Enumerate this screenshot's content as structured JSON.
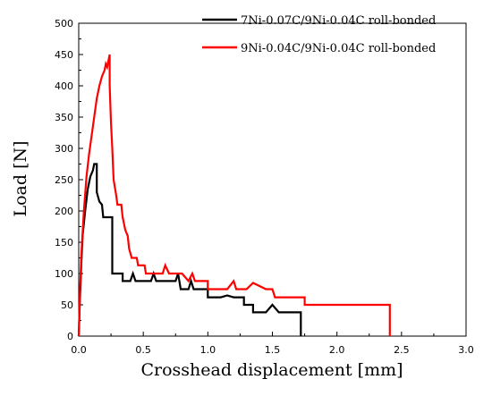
{
  "chart_data": {
    "type": "line",
    "xlabel": "Crosshead displacement [mm]",
    "ylabel": "Load [N]",
    "xlim": [
      0.0,
      3.0
    ],
    "ylim": [
      0,
      500
    ],
    "x_ticks": [
      0.0,
      0.5,
      1.0,
      1.5,
      2.0,
      2.5,
      3.0
    ],
    "x_tick_labels": [
      "0.0",
      "0.5",
      "1.0",
      "1.5",
      "2.0",
      "2.5",
      "3.0"
    ],
    "y_ticks": [
      0,
      50,
      100,
      150,
      200,
      250,
      300,
      350,
      400,
      450,
      500
    ],
    "y_tick_labels": [
      "0",
      "50",
      "100",
      "150",
      "200",
      "250",
      "300",
      "350",
      "400",
      "450",
      "500"
    ],
    "grid": false,
    "legend_position": "top-right",
    "series": [
      {
        "name": "7Ni-0.07C/9Ni-0.04C roll-bonded",
        "color": "#000000",
        "points": [
          [
            0.0,
            0
          ],
          [
            0.01,
            60
          ],
          [
            0.02,
            115
          ],
          [
            0.03,
            160
          ],
          [
            0.05,
            200
          ],
          [
            0.07,
            235
          ],
          [
            0.09,
            255
          ],
          [
            0.11,
            265
          ],
          [
            0.12,
            275
          ],
          [
            0.14,
            275
          ],
          [
            0.14,
            230
          ],
          [
            0.16,
            215
          ],
          [
            0.18,
            210
          ],
          [
            0.19,
            190
          ],
          [
            0.26,
            190
          ],
          [
            0.26,
            100
          ],
          [
            0.34,
            100
          ],
          [
            0.34,
            88
          ],
          [
            0.4,
            88
          ],
          [
            0.42,
            100
          ],
          [
            0.44,
            88
          ],
          [
            0.5,
            88
          ],
          [
            0.56,
            88
          ],
          [
            0.58,
            100
          ],
          [
            0.6,
            88
          ],
          [
            0.75,
            88
          ],
          [
            0.77,
            100
          ],
          [
            0.79,
            75
          ],
          [
            0.85,
            75
          ],
          [
            0.87,
            88
          ],
          [
            0.89,
            75
          ],
          [
            0.95,
            75
          ],
          [
            1.0,
            75
          ],
          [
            1.0,
            62
          ],
          [
            1.1,
            62
          ],
          [
            1.15,
            65
          ],
          [
            1.2,
            62
          ],
          [
            1.28,
            62
          ],
          [
            1.28,
            50
          ],
          [
            1.35,
            50
          ],
          [
            1.35,
            38
          ],
          [
            1.45,
            38
          ],
          [
            1.5,
            50
          ],
          [
            1.55,
            38
          ],
          [
            1.7,
            38
          ],
          [
            1.72,
            38
          ],
          [
            1.72,
            0
          ]
        ]
      },
      {
        "name": "9Ni-0.04C/9Ni-0.04C roll-bonded",
        "color": "#ff0000",
        "points": [
          [
            0.0,
            0
          ],
          [
            0.01,
            70
          ],
          [
            0.02,
            130
          ],
          [
            0.04,
            200
          ],
          [
            0.06,
            255
          ],
          [
            0.08,
            290
          ],
          [
            0.1,
            320
          ],
          [
            0.12,
            350
          ],
          [
            0.14,
            380
          ],
          [
            0.16,
            400
          ],
          [
            0.18,
            415
          ],
          [
            0.2,
            425
          ],
          [
            0.21,
            435
          ],
          [
            0.22,
            430
          ],
          [
            0.23,
            440
          ],
          [
            0.24,
            450
          ],
          [
            0.24,
            400
          ],
          [
            0.25,
            340
          ],
          [
            0.26,
            300
          ],
          [
            0.27,
            250
          ],
          [
            0.29,
            225
          ],
          [
            0.3,
            210
          ],
          [
            0.33,
            210
          ],
          [
            0.34,
            190
          ],
          [
            0.36,
            170
          ],
          [
            0.38,
            160
          ],
          [
            0.39,
            140
          ],
          [
            0.41,
            125
          ],
          [
            0.45,
            125
          ],
          [
            0.46,
            113
          ],
          [
            0.51,
            113
          ],
          [
            0.52,
            100
          ],
          [
            0.65,
            100
          ],
          [
            0.67,
            113
          ],
          [
            0.7,
            100
          ],
          [
            0.8,
            100
          ],
          [
            0.85,
            88
          ],
          [
            0.88,
            100
          ],
          [
            0.9,
            88
          ],
          [
            1.0,
            88
          ],
          [
            1.0,
            75
          ],
          [
            1.15,
            75
          ],
          [
            1.2,
            88
          ],
          [
            1.22,
            75
          ],
          [
            1.3,
            75
          ],
          [
            1.35,
            85
          ],
          [
            1.45,
            75
          ],
          [
            1.5,
            75
          ],
          [
            1.52,
            62
          ],
          [
            1.7,
            62
          ],
          [
            1.75,
            62
          ],
          [
            1.75,
            50
          ],
          [
            2.0,
            50
          ],
          [
            2.2,
            50
          ],
          [
            2.41,
            50
          ],
          [
            2.41,
            0
          ]
        ]
      }
    ]
  }
}
